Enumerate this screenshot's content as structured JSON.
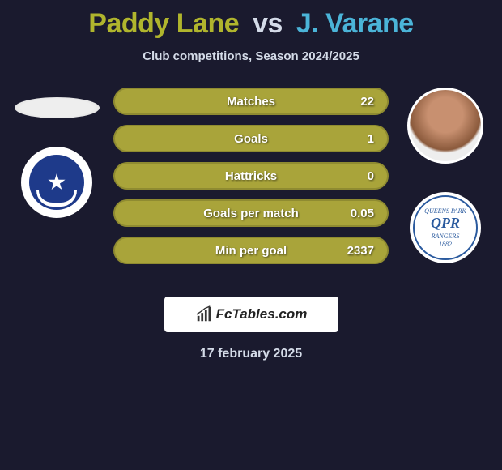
{
  "title": {
    "player1": "Paddy Lane",
    "vs": "vs",
    "player2": "J. Varane",
    "player1_color": "#b0b52d",
    "player2_color": "#4bb4d8"
  },
  "subtitle": "Club competitions, Season 2024/2025",
  "date": "17 february 2025",
  "brand": "FcTables.com",
  "colors": {
    "background": "#1a1a2e",
    "bar_p1": "#a9a43a",
    "bar_p2": "#4bb4d8",
    "text_light": "#d4dbe8",
    "stat_text": "#ffffff"
  },
  "stats": [
    {
      "label": "Matches",
      "p1": "",
      "p2": "22",
      "p1_width_pct": 0,
      "p2_width_pct": 100
    },
    {
      "label": "Goals",
      "p1": "",
      "p2": "1",
      "p1_width_pct": 0,
      "p2_width_pct": 100
    },
    {
      "label": "Hattricks",
      "p1": "",
      "p2": "0",
      "p1_width_pct": 0,
      "p2_width_pct": 100
    },
    {
      "label": "Goals per match",
      "p1": "",
      "p2": "0.05",
      "p1_width_pct": 0,
      "p2_width_pct": 100
    },
    {
      "label": "Min per goal",
      "p1": "",
      "p2": "2337",
      "p1_width_pct": 0,
      "p2_width_pct": 100
    }
  ],
  "player1_club": "Portsmouth",
  "player2_club": "Queens Park Rangers"
}
